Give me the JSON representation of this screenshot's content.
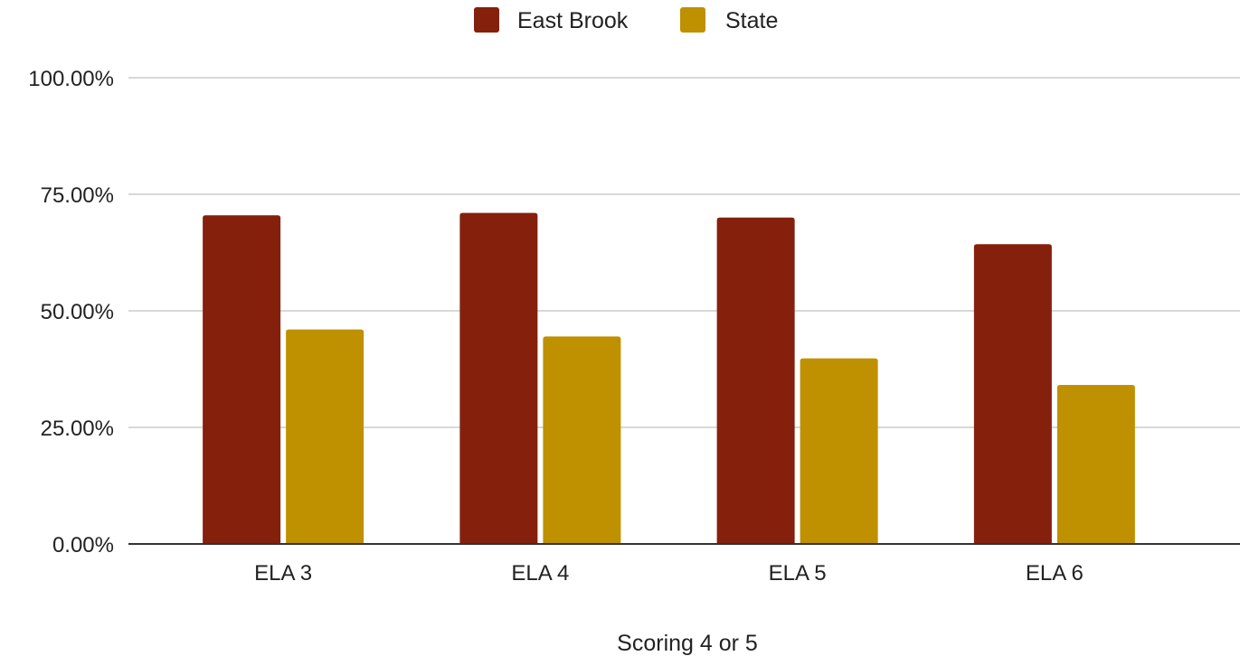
{
  "chart_data": {
    "type": "bar",
    "title": "",
    "xlabel": "Scoring 4 or 5",
    "ylabel": "",
    "categories": [
      "ELA 3",
      "ELA 4",
      "ELA 5",
      "ELA 6"
    ],
    "series": [
      {
        "name": "East Brook",
        "color": "#85200c",
        "values": [
          70.5,
          71.0,
          70.0,
          64.3
        ]
      },
      {
        "name": "State",
        "color": "#bf9000",
        "values": [
          46.0,
          44.5,
          39.8,
          34.1
        ]
      }
    ],
    "ylim": [
      0,
      100
    ],
    "yticks": [
      0,
      25,
      50,
      75,
      100
    ],
    "ytick_labels": [
      "0.00%",
      "25.00%",
      "50.00%",
      "75.00%",
      "100.00%"
    ],
    "grid": true,
    "legend_position": "top-center",
    "gridline_color": "#cccccc",
    "baseline_color": "#333333"
  }
}
